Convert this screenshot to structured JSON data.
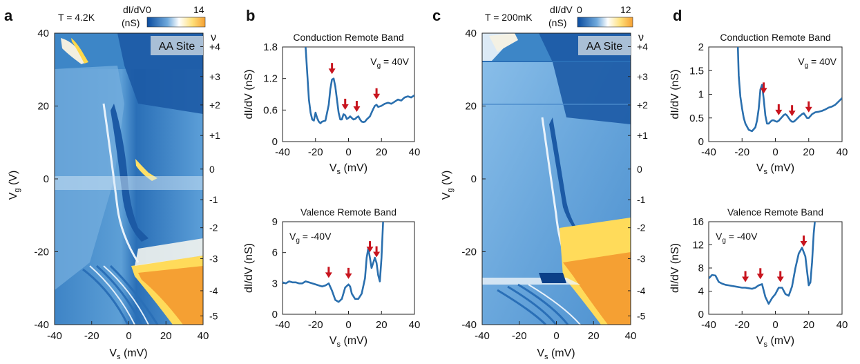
{
  "panels": [
    {
      "id": "a",
      "label": "a",
      "temperature": "T = 4.2K",
      "colorbar": {
        "title_line1": "dI/dV",
        "title_line2": "(nS)",
        "min": "0",
        "max": "14"
      },
      "site_label": "AA Site",
      "xlabel": "V",
      "xlabel_sub": "s",
      "xlabel_unit": " (mV)",
      "ylabel": "V",
      "ylabel_sub": "g",
      "ylabel_unit": " (V)",
      "nu_label": "ν"
    },
    {
      "id": "b",
      "label": "b"
    },
    {
      "id": "c",
      "label": "c",
      "temperature": "T = 200mK",
      "colorbar": {
        "title_line1": "dI/dV",
        "title_line2": "(nS)",
        "min": "0",
        "max": "12"
      },
      "site_label": "AA Site",
      "xlabel": "V",
      "xlabel_sub": "s",
      "xlabel_unit": " (mV)",
      "ylabel": "V",
      "ylabel_sub": "g",
      "ylabel_unit": " (V)",
      "nu_label": "ν"
    },
    {
      "id": "d",
      "label": "d"
    }
  ],
  "colors": {
    "line": "#2a6fae",
    "arrow": "#c8141e",
    "map_dark": "#1b5fa8",
    "map_mid": "#5d9fd6",
    "map_light": "#eef5fb",
    "map_yellow": "#ffd64a",
    "map_orange": "#f5a033",
    "site_box": "#a9bfd6"
  },
  "chart_data": [
    {
      "type": "heatmap",
      "panel": "a",
      "title": "",
      "xlabel": "Vs (mV)",
      "ylabel": "Vg (V)",
      "xlim": [
        -40,
        40
      ],
      "ylim": [
        -40,
        40
      ],
      "xticks": [
        -40,
        -20,
        0,
        20,
        40
      ],
      "yticks": [
        -40,
        -20,
        0,
        20,
        40
      ],
      "right_axis": {
        "label": "ν",
        "ticks": [
          {
            "v": 36.3,
            "label": "+4"
          },
          {
            "v": 28.1,
            "label": "+3"
          },
          {
            "v": 20.3,
            "label": "+2"
          },
          {
            "v": 11.9,
            "label": "+1"
          },
          {
            "v": 2.7,
            "label": "0"
          },
          {
            "v": -5.7,
            "label": "-1"
          },
          {
            "v": -13.4,
            "label": "-2"
          },
          {
            "v": -21.9,
            "label": "-3"
          },
          {
            "v": -30.7,
            "label": "-4"
          },
          {
            "v": -37.6,
            "label": "-5"
          }
        ]
      },
      "colorbar": {
        "label": "dI/dV (nS)",
        "min": 0,
        "max": 14
      }
    },
    {
      "type": "line",
      "panel": "b-top",
      "title": "Conduction Remote Band",
      "annotation": "Vg = 40V",
      "xlabel": "Vs (mV)",
      "ylabel": "dI/dV (nS)",
      "xlim": [
        -40,
        40
      ],
      "ylim": [
        0,
        1.8
      ],
      "xticks": [
        -40,
        -20,
        0,
        20,
        40
      ],
      "yticks": [
        0,
        0.6,
        1.2,
        1.8
      ],
      "ytick_labels": [
        "0",
        "0.6",
        "1.2",
        "1.8"
      ],
      "x": [
        -40,
        -26,
        -25,
        -24,
        -23,
        -22,
        -21,
        -20,
        -19,
        -18,
        -17,
        -16,
        -14,
        -12,
        -11,
        -10,
        -9,
        -8,
        -7,
        -6,
        -5,
        -4,
        -3,
        -2,
        -1,
        0,
        1,
        2,
        3,
        4,
        5,
        6,
        7,
        8,
        9,
        10,
        11,
        12,
        13,
        14,
        15,
        16,
        17,
        18,
        20,
        22,
        24,
        26,
        28,
        30,
        32,
        34,
        36,
        38,
        40
      ],
      "y": [
        null,
        1.8,
        1.3,
        0.8,
        0.55,
        0.42,
        0.4,
        0.55,
        0.45,
        0.38,
        0.35,
        0.38,
        0.4,
        0.7,
        1.0,
        1.18,
        1.2,
        1.05,
        0.8,
        0.55,
        0.42,
        0.42,
        0.52,
        0.5,
        0.43,
        0.45,
        0.48,
        0.45,
        0.42,
        0.43,
        0.46,
        0.48,
        0.42,
        0.38,
        0.37,
        0.38,
        0.42,
        0.45,
        0.48,
        0.55,
        0.62,
        0.68,
        0.7,
        0.66,
        0.68,
        0.72,
        0.74,
        0.72,
        0.76,
        0.8,
        0.78,
        0.84,
        0.86,
        0.84,
        0.88
      ],
      "arrows_x": [
        -10,
        -2,
        5,
        17
      ]
    },
    {
      "type": "line",
      "panel": "b-bottom",
      "title": "Valence Remote Band",
      "annotation": "Vg = -40V",
      "xlabel": "Vs (mV)",
      "ylabel": "dI/dV (nS)",
      "xlim": [
        -40,
        40
      ],
      "ylim": [
        0,
        9
      ],
      "xticks": [
        -40,
        -20,
        0,
        20,
        40
      ],
      "yticks": [
        0,
        3,
        6,
        9
      ],
      "x": [
        -40,
        -38,
        -36,
        -34,
        -32,
        -30,
        -28,
        -26,
        -24,
        -22,
        -20,
        -18,
        -16,
        -14,
        -12,
        -10,
        -8,
        -6,
        -4,
        -2,
        0,
        1,
        2,
        4,
        6,
        8,
        10,
        11,
        12,
        13,
        14,
        15,
        16,
        17,
        18,
        19,
        20,
        21,
        22
      ],
      "y": [
        3.1,
        3.0,
        3.2,
        3.1,
        3.1,
        3.0,
        3.0,
        3.2,
        3.1,
        3.0,
        2.9,
        2.8,
        2.7,
        2.8,
        3.0,
        2.3,
        1.4,
        1.2,
        1.5,
        2.6,
        2.9,
        2.7,
        2.0,
        1.5,
        1.5,
        2.0,
        3.5,
        5.5,
        6.4,
        5.5,
        4.5,
        5.0,
        5.5,
        5.0,
        3.8,
        3.2,
        5.5,
        9.0,
        9.5
      ],
      "arrows_x": [
        -12,
        0,
        13,
        17
      ]
    },
    {
      "type": "heatmap",
      "panel": "c",
      "title": "",
      "xlabel": "Vs (mV)",
      "ylabel": "Vg (V)",
      "xlim": [
        -40,
        40
      ],
      "ylim": [
        -40,
        40
      ],
      "xticks": [
        -40,
        -20,
        0,
        20,
        40
      ],
      "yticks": [
        -40,
        -20,
        0,
        20,
        40
      ],
      "right_axis": {
        "label": "ν",
        "ticks": [
          {
            "v": 36.3,
            "label": "+4"
          },
          {
            "v": 28.1,
            "label": "+3"
          },
          {
            "v": 20.3,
            "label": "+2"
          },
          {
            "v": 11.9,
            "label": "+1"
          },
          {
            "v": 2.7,
            "label": "0"
          },
          {
            "v": -5.7,
            "label": "-1"
          },
          {
            "v": -13.4,
            "label": "-2"
          },
          {
            "v": -21.9,
            "label": "-3"
          },
          {
            "v": -30.7,
            "label": "-4"
          },
          {
            "v": -37.6,
            "label": "-5"
          }
        ]
      },
      "colorbar": {
        "label": "dI/dV (nS)",
        "min": 0,
        "max": 12
      }
    },
    {
      "type": "line",
      "panel": "d-top",
      "title": "Conduction Remote Band",
      "annotation": "Vg = 40V",
      "xlabel": "Vs (mV)",
      "ylabel": "dI/dV (nS)",
      "xlim": [
        -40,
        40
      ],
      "ylim": [
        0,
        2
      ],
      "xticks": [
        -40,
        -20,
        0,
        20,
        40
      ],
      "yticks": [
        0,
        0.5,
        1,
        1.5,
        2
      ],
      "ytick_labels": [
        "0",
        "0.5",
        "1",
        "1.5",
        "2"
      ],
      "x": [
        -22.5,
        -22,
        -21,
        -20,
        -19,
        -18,
        -16,
        -14,
        -12,
        -11,
        -10,
        -9,
        -8,
        -7,
        -6,
        -5,
        -4,
        -3,
        -2,
        -1,
        0,
        1,
        2,
        3,
        4,
        5,
        6,
        7,
        8,
        9,
        10,
        11,
        12,
        14,
        16,
        17,
        18,
        19,
        20,
        22,
        24,
        26,
        28,
        30,
        32,
        34,
        36,
        38,
        40
      ],
      "y": [
        2.0,
        1.4,
        0.95,
        0.7,
        0.5,
        0.38,
        0.25,
        0.22,
        0.3,
        0.45,
        0.7,
        1.1,
        1.2,
        0.9,
        0.55,
        0.38,
        0.38,
        0.42,
        0.45,
        0.45,
        0.43,
        0.42,
        0.44,
        0.48,
        0.52,
        0.56,
        0.58,
        0.55,
        0.5,
        0.45,
        0.42,
        0.42,
        0.45,
        0.52,
        0.58,
        0.6,
        0.55,
        0.5,
        0.5,
        0.58,
        0.62,
        0.63,
        0.65,
        0.68,
        0.72,
        0.74,
        0.78,
        0.85,
        0.92
      ],
      "arrows_x": [
        -7,
        2,
        10,
        20
      ]
    },
    {
      "type": "line",
      "panel": "d-bottom",
      "title": "Valence Remote Band",
      "annotation": "Vg = -40V",
      "xlabel": "Vs (mV)",
      "ylabel": "dI/dV (nS)",
      "xlim": [
        -40,
        40
      ],
      "ylim": [
        0,
        16
      ],
      "xticks": [
        -40,
        -20,
        0,
        20,
        40
      ],
      "yticks": [
        0,
        4,
        8,
        12,
        16
      ],
      "x": [
        -40,
        -38,
        -36,
        -34,
        -32,
        -30,
        -28,
        -26,
        -24,
        -22,
        -20,
        -18,
        -16,
        -14,
        -12,
        -10,
        -8,
        -6,
        -4,
        -2,
        0,
        2,
        4,
        6,
        8,
        10,
        12,
        14,
        16,
        18,
        19,
        20,
        21,
        22,
        23,
        24
      ],
      "y": [
        6.2,
        6.8,
        6.7,
        5.6,
        5.3,
        5.1,
        5.0,
        4.9,
        4.8,
        4.7,
        4.6,
        4.6,
        4.5,
        4.4,
        4.6,
        5.0,
        5.2,
        3.0,
        1.8,
        2.8,
        3.5,
        4.6,
        4.6,
        3.5,
        3.2,
        4.8,
        8.0,
        10.5,
        11.5,
        10.0,
        7.5,
        5.0,
        5.5,
        9.0,
        14.0,
        17.0
      ],
      "arrows_x": [
        -18,
        -9,
        3,
        17
      ]
    }
  ]
}
